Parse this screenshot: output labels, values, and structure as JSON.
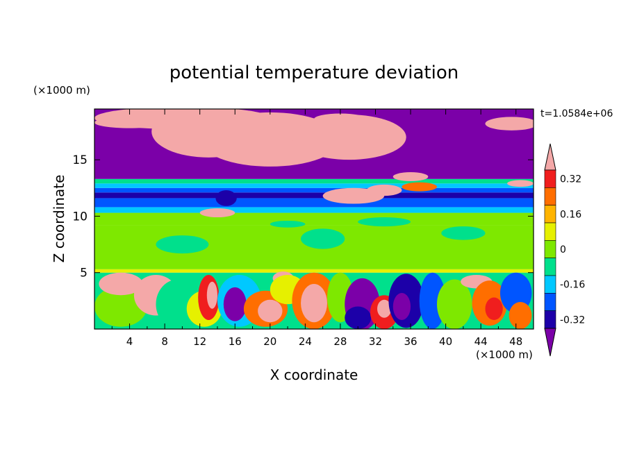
{
  "chart_data": {
    "type": "heatmap",
    "title": "potential temperature deviation",
    "xlabel": "X coordinate",
    "ylabel": "Z coordinate",
    "x_unit": "(×1000 m)",
    "y_unit": "(×1000 m)",
    "time_label": "t=1.0584e+06",
    "xlim": [
      0,
      50
    ],
    "ylim": [
      0,
      19.5
    ],
    "x_ticks": [
      4,
      8,
      12,
      16,
      20,
      24,
      28,
      32,
      36,
      40,
      44,
      48
    ],
    "y_ticks": [
      5,
      10,
      15
    ],
    "colorbar": {
      "levels": [
        -0.4,
        -0.32,
        -0.24,
        -0.16,
        -0.08,
        0,
        0.08,
        0.16,
        0.24,
        0.32,
        0.4
      ],
      "tick_labels": [
        "0.32",
        "0.16",
        "0",
        "-0.16",
        "-0.32"
      ],
      "tick_values": [
        0.32,
        0.16,
        0,
        -0.16,
        -0.32
      ],
      "colors": [
        "#7b00a8",
        "#1c00a8",
        "#0055ff",
        "#00c8ff",
        "#00e08c",
        "#7ee800",
        "#e6f000",
        "#ffb400",
        "#ff6e00",
        "#f01e1e",
        "#f4a8a8"
      ]
    }
  }
}
